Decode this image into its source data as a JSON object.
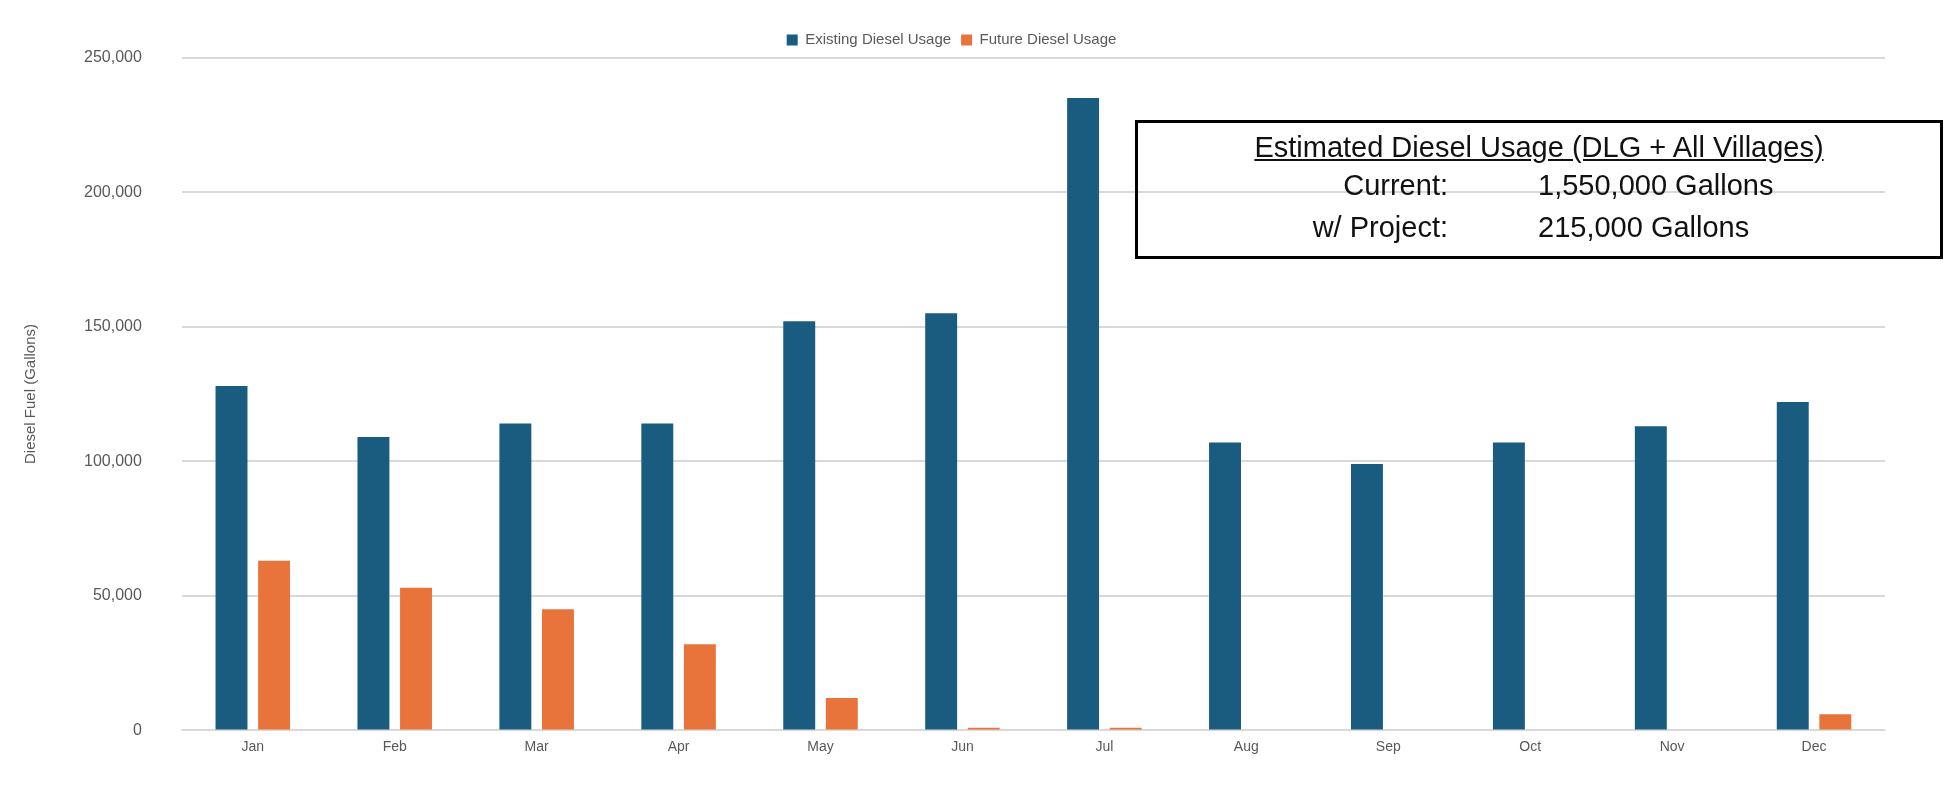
{
  "chart_data": {
    "type": "bar",
    "ylabel": "Diesel Fuel (Gallons)",
    "categories": [
      "Jan",
      "Feb",
      "Mar",
      "Apr",
      "May",
      "Jun",
      "Jul",
      "Aug",
      "Sep",
      "Oct",
      "Nov",
      "Dec"
    ],
    "series": [
      {
        "name": "Existing Diesel Usage",
        "color": "#1a5b80",
        "values": [
          128000,
          109000,
          114000,
          114000,
          152000,
          155000,
          235000,
          107000,
          99000,
          107000,
          113000,
          122000
        ]
      },
      {
        "name": "Future Diesel Usage",
        "color": "#e8743b",
        "values": [
          63000,
          53000,
          45000,
          32000,
          12000,
          1000,
          1000,
          0,
          0,
          0,
          0,
          6000
        ]
      }
    ],
    "ylim": [
      0,
      250000
    ],
    "yticks": [
      {
        "value": 0,
        "label": "0"
      },
      {
        "value": 50000,
        "label": "50,000"
      },
      {
        "value": 100000,
        "label": "100,000"
      },
      {
        "value": 150000,
        "label": "150,000"
      },
      {
        "value": 200000,
        "label": "200,000"
      },
      {
        "value": 250000,
        "label": "250,000"
      }
    ],
    "grid": "y",
    "legend": "top",
    "annotations": [
      "Estimated Diesel Usage (DLG + All Villages)",
      "Current:",
      "1,550,000 Gallons",
      "w/ Project:",
      "215,000 Gallons"
    ]
  }
}
